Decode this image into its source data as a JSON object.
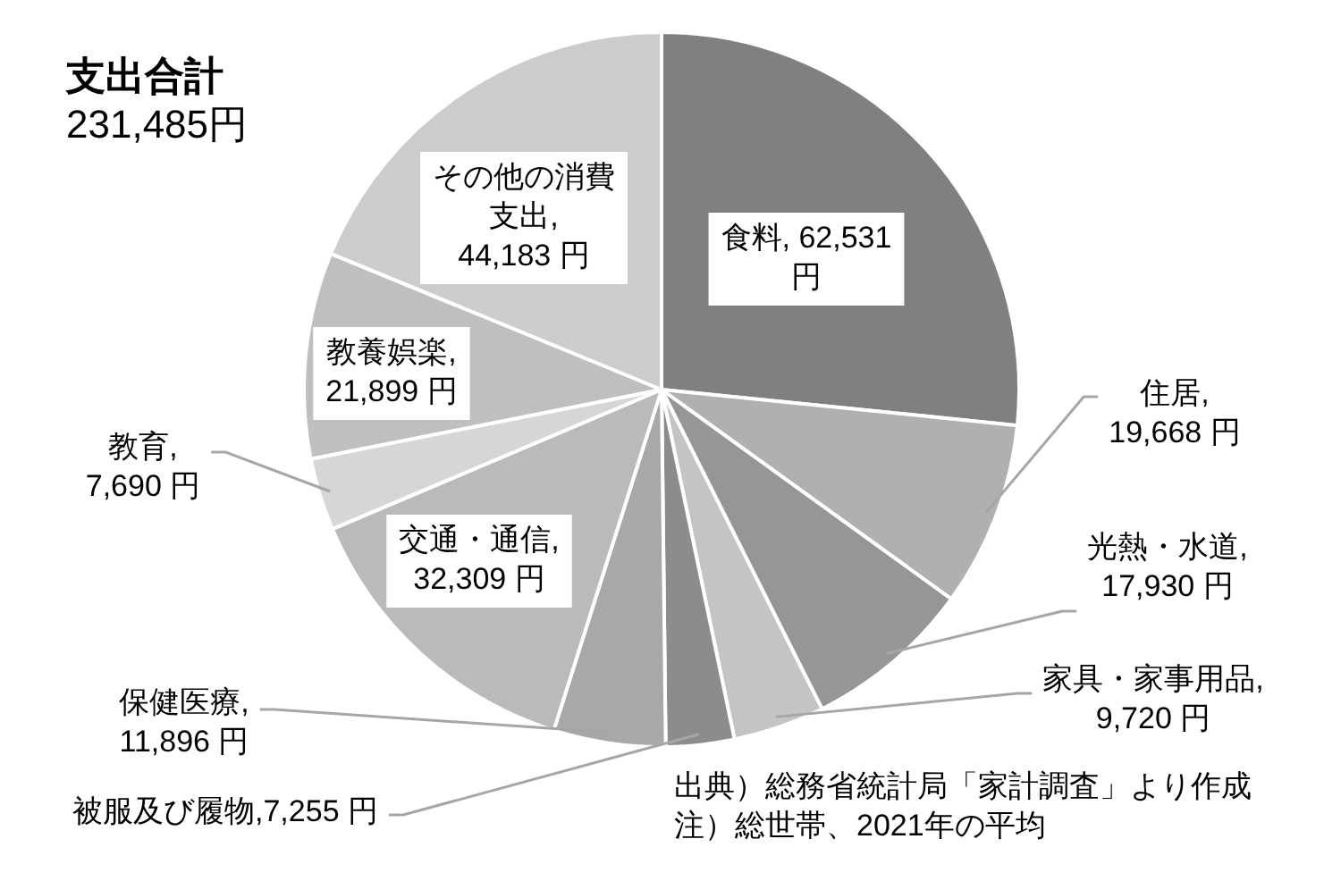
{
  "chart_data": {
    "type": "pie",
    "title": "支出合計",
    "subtitle": "231,485円",
    "categories": [
      "食料",
      "住居",
      "光熱・水道",
      "家具・家事用品",
      "被服及び履物",
      "保健医療",
      "交通・通信",
      "教育",
      "教養娯楽",
      "その他の消費支出"
    ],
    "values": [
      62531,
      19668,
      17930,
      9720,
      7255,
      11896,
      32309,
      7690,
      21899,
      44183
    ],
    "colors": [
      "#808080",
      "#b0b0b0",
      "#969696",
      "#c4c4c4",
      "#8c8c8c",
      "#a8a8a8",
      "#bababa",
      "#d6d6d6",
      "#bfbfbf",
      "#cccccc"
    ],
    "value_labels": [
      ", 62,531 円",
      ", 19,668 円",
      ", 17,930 円",
      ", 9,720 円",
      ",7,255 円",
      ", 11,896 円",
      ", 32,309 円",
      ", 7,690 円",
      ", 21,899 円",
      ", 44,183 円"
    ],
    "annotations": [
      "出典）総務省統計局「家計調査」より作成",
      "注）総世帯、2021年の平均"
    ]
  }
}
